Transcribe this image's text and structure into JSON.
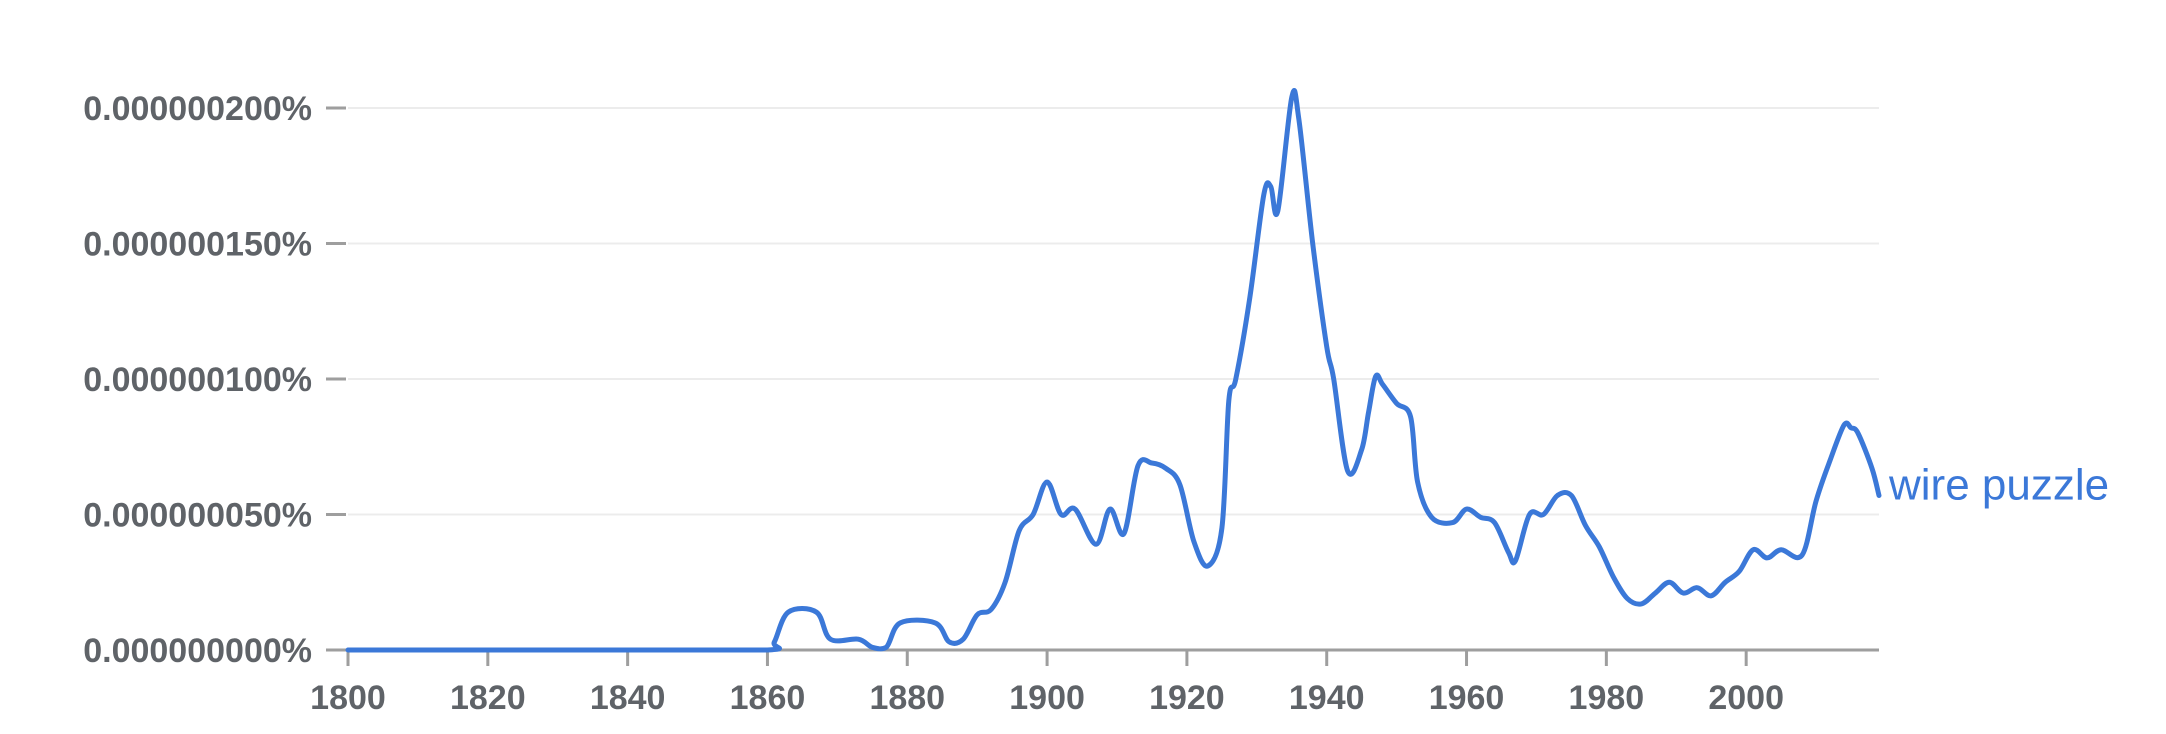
{
  "chart_data": {
    "type": "line",
    "title": "",
    "xlabel": "",
    "ylabel": "",
    "xlim": [
      1800,
      2019
    ],
    "ylim": [
      0,
      2.1e-07
    ],
    "x_ticks": [
      "1800",
      "1820",
      "1840",
      "1860",
      "1880",
      "1900",
      "1920",
      "1940",
      "1960",
      "1980",
      "2000"
    ],
    "x_tick_values": [
      1800,
      1820,
      1840,
      1860,
      1880,
      1900,
      1920,
      1940,
      1960,
      1980,
      2000
    ],
    "y_ticks": [
      "0.000000000%",
      "0.000000050%",
      "0.000000100%",
      "0.000000150%",
      "0.000000200%"
    ],
    "y_tick_values": [
      0,
      5e-08,
      1e-07,
      1.5e-07,
      2e-07
    ],
    "grid": true,
    "colors": {
      "series": "#3b78d8",
      "grid": "#ececec",
      "axis": "#9e9e9e",
      "text": "#5f6368"
    },
    "series": [
      {
        "name": "wire puzzle",
        "points": [
          [
            1800,
            0
          ],
          [
            1820,
            0
          ],
          [
            1840,
            0
          ],
          [
            1860,
            0
          ],
          [
            1861,
            3e-09
          ],
          [
            1863,
            1.4e-08
          ],
          [
            1867,
            1.4e-08
          ],
          [
            1869,
            4e-09
          ],
          [
            1873,
            4e-09
          ],
          [
            1875,
            1e-09
          ],
          [
            1877,
            1e-09
          ],
          [
            1879,
            1e-08
          ],
          [
            1884,
            1e-08
          ],
          [
            1886,
            3e-09
          ],
          [
            1888,
            4e-09
          ],
          [
            1890,
            1.3e-08
          ],
          [
            1892,
            1.5e-08
          ],
          [
            1894,
            2.5e-08
          ],
          [
            1896,
            4.4e-08
          ],
          [
            1898,
            5e-08
          ],
          [
            1900,
            6.2e-08
          ],
          [
            1902,
            5e-08
          ],
          [
            1904,
            5.2e-08
          ],
          [
            1907,
            3.9e-08
          ],
          [
            1909,
            5.2e-08
          ],
          [
            1911,
            4.3e-08
          ],
          [
            1913,
            6.8e-08
          ],
          [
            1915,
            6.9e-08
          ],
          [
            1917,
            6.7e-08
          ],
          [
            1919,
            6.1e-08
          ],
          [
            1921,
            4e-08
          ],
          [
            1923,
            3.1e-08
          ],
          [
            1925,
            4.5e-08
          ],
          [
            1926,
            9.2e-08
          ],
          [
            1927,
            1e-07
          ],
          [
            1929,
            1.3e-07
          ],
          [
            1931,
            1.68e-07
          ],
          [
            1932,
            1.71e-07
          ],
          [
            1933,
            1.62e-07
          ],
          [
            1935,
            2.04e-07
          ],
          [
            1936,
            1.96e-07
          ],
          [
            1938,
            1.5e-07
          ],
          [
            1940,
            1.12e-07
          ],
          [
            1941,
            1e-07
          ],
          [
            1943,
            6.6e-08
          ],
          [
            1945,
            7.4e-08
          ],
          [
            1946,
            8.8e-08
          ],
          [
            1947,
            1.01e-07
          ],
          [
            1948,
            9.8e-08
          ],
          [
            1950,
            9.1e-08
          ],
          [
            1952,
            8.6e-08
          ],
          [
            1953,
            6.2e-08
          ],
          [
            1955,
            4.9e-08
          ],
          [
            1958,
            4.7e-08
          ],
          [
            1960,
            5.2e-08
          ],
          [
            1962,
            4.9e-08
          ],
          [
            1964,
            4.7e-08
          ],
          [
            1966,
            3.6e-08
          ],
          [
            1967,
            3.3e-08
          ],
          [
            1969,
            5e-08
          ],
          [
            1971,
            5e-08
          ],
          [
            1973,
            5.7e-08
          ],
          [
            1975,
            5.7e-08
          ],
          [
            1977,
            4.6e-08
          ],
          [
            1979,
            3.8e-08
          ],
          [
            1981,
            2.7e-08
          ],
          [
            1983,
            1.9e-08
          ],
          [
            1985,
            1.7e-08
          ],
          [
            1987,
            2.1e-08
          ],
          [
            1989,
            2.5e-08
          ],
          [
            1991,
            2.1e-08
          ],
          [
            1993,
            2.3e-08
          ],
          [
            1995,
            2e-08
          ],
          [
            1997,
            2.5e-08
          ],
          [
            1999,
            2.9e-08
          ],
          [
            2001,
            3.7e-08
          ],
          [
            2003,
            3.4e-08
          ],
          [
            2005,
            3.7e-08
          ],
          [
            2008,
            3.5e-08
          ],
          [
            2010,
            5.5e-08
          ],
          [
            2012,
            7e-08
          ],
          [
            2014,
            8.3e-08
          ],
          [
            2015,
            8.2e-08
          ],
          [
            2016,
            8e-08
          ],
          [
            2018,
            6.7e-08
          ],
          [
            2019,
            5.7e-08
          ]
        ]
      }
    ]
  }
}
